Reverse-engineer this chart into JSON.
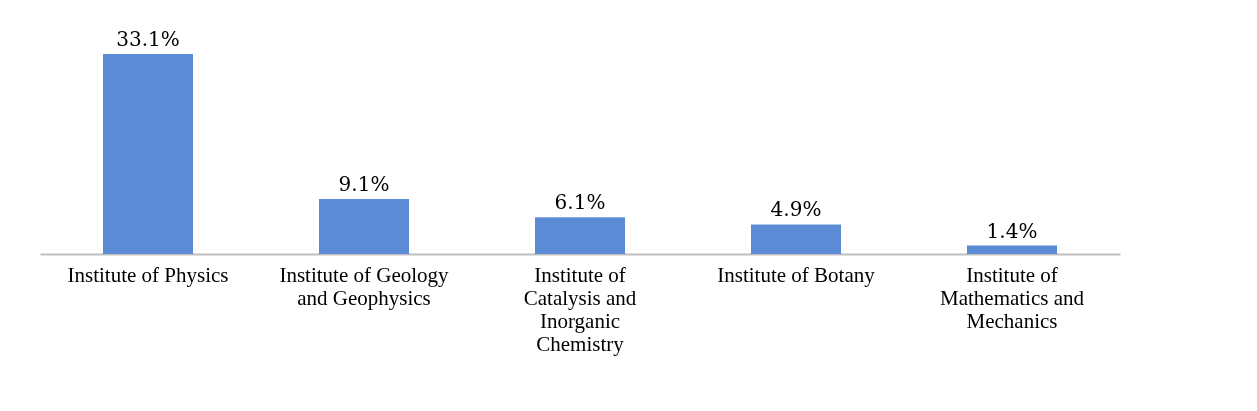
{
  "chart_data": {
    "type": "bar",
    "categories": [
      "Institute of Physics",
      "Institute of Geology and Geophysics",
      "Institute of Catalysis and Inorganic Chemistry",
      "Institute of Botany",
      "Institute of Mathematics and Mechanics"
    ],
    "values": [
      33.1,
      9.1,
      6.1,
      4.9,
      1.4
    ],
    "value_labels": [
      "33.1%",
      "9.1%",
      "6.1%",
      "4.9%",
      "1.4%"
    ],
    "color": "#5b8bd5",
    "grid": false
  }
}
